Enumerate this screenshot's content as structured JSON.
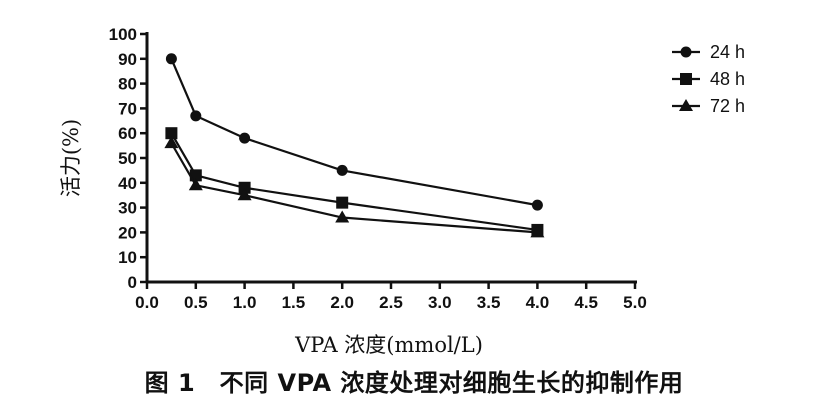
{
  "caption": "图 1　不同 VPA 浓度处理对细胞生长的抑制作用",
  "chart_data": {
    "type": "line",
    "xlabel": "VPA 浓度(mmol/L)",
    "ylabel": "活力(%)",
    "xlim": [
      0,
      5.0
    ],
    "ylim": [
      0,
      100
    ],
    "x_ticks": [
      "0.0",
      "0.5",
      "1.0",
      "1.5",
      "2.0",
      "2.5",
      "3.0",
      "3.5",
      "4.0",
      "4.5",
      "5.0"
    ],
    "y_ticks": [
      "0",
      "10",
      "20",
      "30",
      "40",
      "50",
      "60",
      "70",
      "80",
      "90",
      "100"
    ],
    "grid": false,
    "legend_position": "top-right",
    "series": [
      {
        "name": "24 h",
        "marker": "circle",
        "x": [
          0.25,
          0.5,
          1.0,
          2.0,
          4.0
        ],
        "values": [
          90,
          67,
          58,
          45,
          31
        ]
      },
      {
        "name": "48 h",
        "marker": "square",
        "x": [
          0.25,
          0.5,
          1.0,
          2.0,
          4.0
        ],
        "values": [
          60,
          43,
          38,
          32,
          21
        ]
      },
      {
        "name": "72 h",
        "marker": "triangle",
        "x": [
          0.25,
          0.5,
          1.0,
          2.0,
          4.0
        ],
        "values": [
          56,
          39,
          35,
          26,
          20
        ]
      }
    ]
  }
}
